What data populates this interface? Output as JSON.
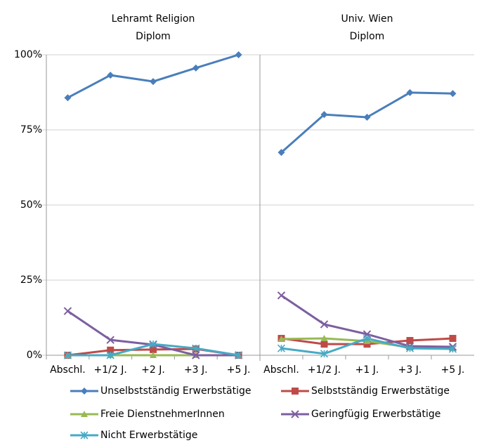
{
  "chart_data": {
    "type": "line",
    "ylim": [
      0,
      100
    ],
    "yticks": [
      {
        "value": 0,
        "label": "0%"
      },
      {
        "value": 25,
        "label": "25%"
      },
      {
        "value": 50,
        "label": "50%"
      },
      {
        "value": 75,
        "label": "75%"
      },
      {
        "value": 100,
        "label": "100%"
      }
    ],
    "grid": true,
    "legend": "bottom",
    "series": [
      {
        "name": "Unselbstständig Erwerbstätige",
        "color": "#4a7ebb",
        "marker": "diamond"
      },
      {
        "name": "Selbstständig Erwerbstätige",
        "color": "#be4b48",
        "marker": "square"
      },
      {
        "name": "Freie DienstnehmerInnen",
        "color": "#98b954",
        "marker": "triangle"
      },
      {
        "name": "Geringfügig Erwerbstätige",
        "color": "#7d5fa0",
        "marker": "x"
      },
      {
        "name": "Nicht Erwerbstätige",
        "color": "#46aac5",
        "marker": "asterisk"
      }
    ],
    "panels": [
      {
        "title": "Lehramt Religion",
        "subtitle": "Diplom",
        "categories": [
          "Abschl.",
          "+1/2 J.",
          "+2 J.",
          "+3 J.",
          "+5 J."
        ],
        "values": [
          [
            85.7,
            93.2,
            91.1,
            95.6,
            100
          ],
          [
            0,
            1.7,
            1.9,
            2.1,
            0
          ],
          [
            0,
            0,
            0,
            0,
            0
          ],
          [
            14.7,
            5.1,
            3.5,
            0,
            0
          ],
          [
            0,
            0,
            3.7,
            2.3,
            0
          ]
        ]
      },
      {
        "title": "Univ. Wien",
        "subtitle": "Diplom",
        "categories": [
          "Abschl.",
          "+1/2 J.",
          "+1 J.",
          "+3 J.",
          "+5 J."
        ],
        "values": [
          [
            67.5,
            80.1,
            79.2,
            87.4,
            87.1
          ],
          [
            5.6,
            3.7,
            3.7,
            4.9,
            5.6
          ],
          [
            5.4,
            5.6,
            4.7,
            2.6,
            2.3
          ],
          [
            19.9,
            10.3,
            7.0,
            3.0,
            2.8
          ],
          [
            2.3,
            0.5,
            5.6,
            2.3,
            2.1
          ]
        ]
      }
    ]
  }
}
